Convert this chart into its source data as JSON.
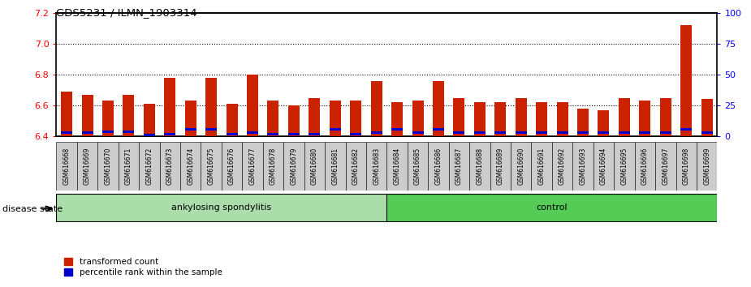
{
  "title": "GDS5231 / ILMN_1903314",
  "samples": [
    "GSM616668",
    "GSM616669",
    "GSM616670",
    "GSM616671",
    "GSM616672",
    "GSM616673",
    "GSM616674",
    "GSM616675",
    "GSM616676",
    "GSM616677",
    "GSM616678",
    "GSM616679",
    "GSM616680",
    "GSM616681",
    "GSM616682",
    "GSM616683",
    "GSM616684",
    "GSM616685",
    "GSM616686",
    "GSM616687",
    "GSM616688",
    "GSM616689",
    "GSM616690",
    "GSM616691",
    "GSM616692",
    "GSM616693",
    "GSM616694",
    "GSM616695",
    "GSM616696",
    "GSM616697",
    "GSM616698",
    "GSM616699"
  ],
  "red_values": [
    6.69,
    6.67,
    6.63,
    6.67,
    6.61,
    6.78,
    6.63,
    6.78,
    6.61,
    6.8,
    6.63,
    6.6,
    6.65,
    6.63,
    6.63,
    6.76,
    6.62,
    6.63,
    6.76,
    6.65,
    6.62,
    6.62,
    6.65,
    6.62,
    6.62,
    6.58,
    6.57,
    6.65,
    6.63,
    6.65,
    7.12,
    6.64
  ],
  "blue_values": [
    6.415,
    6.415,
    6.42,
    6.42,
    6.4,
    6.405,
    6.435,
    6.435,
    6.405,
    6.415,
    6.405,
    6.405,
    6.405,
    6.435,
    6.405,
    6.415,
    6.435,
    6.415,
    6.435,
    6.415,
    6.415,
    6.415,
    6.415,
    6.415,
    6.415,
    6.415,
    6.415,
    6.415,
    6.415,
    6.415,
    6.435,
    6.415
  ],
  "disease_groups": [
    {
      "label": "ankylosing spondylitis",
      "start": 0,
      "end": 15
    },
    {
      "label": "control",
      "start": 16,
      "end": 31
    }
  ],
  "group_colors": [
    "#AADDAA",
    "#55CC55"
  ],
  "ylim_left": [
    6.4,
    7.2
  ],
  "ylim_right": [
    0,
    100
  ],
  "yticks_left": [
    6.4,
    6.6,
    6.8,
    7.0,
    7.2
  ],
  "yticks_right": [
    0,
    25,
    50,
    75,
    100
  ],
  "grid_values": [
    6.6,
    6.8,
    7.0
  ],
  "bar_width": 0.55,
  "bar_base": 6.4,
  "red_color": "#CC2200",
  "blue_color": "#0000CC",
  "plot_bg": "#FFFFFF",
  "legend_red": "transformed count",
  "legend_blue": "percentile rank within the sample",
  "disease_state_label": "disease state"
}
